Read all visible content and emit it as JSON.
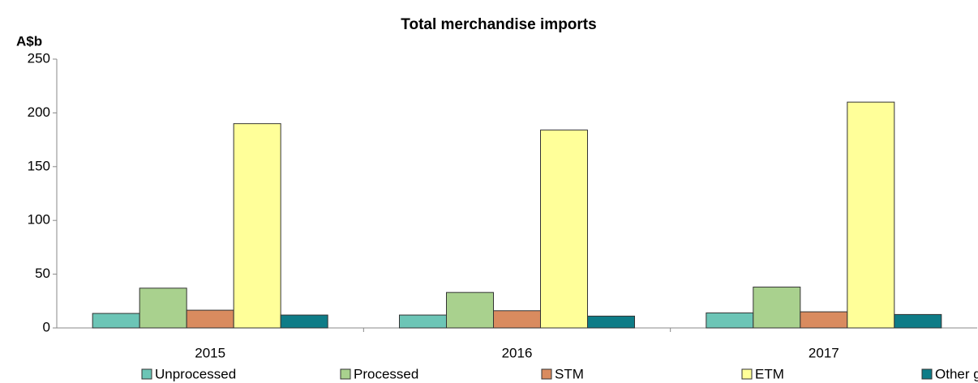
{
  "chart_data": {
    "type": "bar",
    "title": "Total merchandise imports",
    "y_label": "A$b",
    "categories": [
      "2015",
      "2016",
      "2017"
    ],
    "series": [
      {
        "name": "Unprocessed",
        "color": "#6cc5b6",
        "values": [
          13.5,
          12,
          14
        ]
      },
      {
        "name": "Processed",
        "color": "#a9d18e",
        "values": [
          37,
          33,
          38
        ]
      },
      {
        "name": "STM",
        "color": "#d98b5f",
        "values": [
          16.5,
          16,
          15
        ]
      },
      {
        "name": "ETM",
        "color": "#ffff99",
        "values": [
          190,
          184,
          210
        ]
      },
      {
        "name": "Other goods",
        "color": "#0e7c87",
        "values": [
          12,
          11,
          12.5
        ]
      }
    ],
    "ylim": [
      0,
      250
    ],
    "yticks": [
      0,
      50,
      100,
      150,
      200,
      250
    ],
    "legend": "bottom"
  }
}
